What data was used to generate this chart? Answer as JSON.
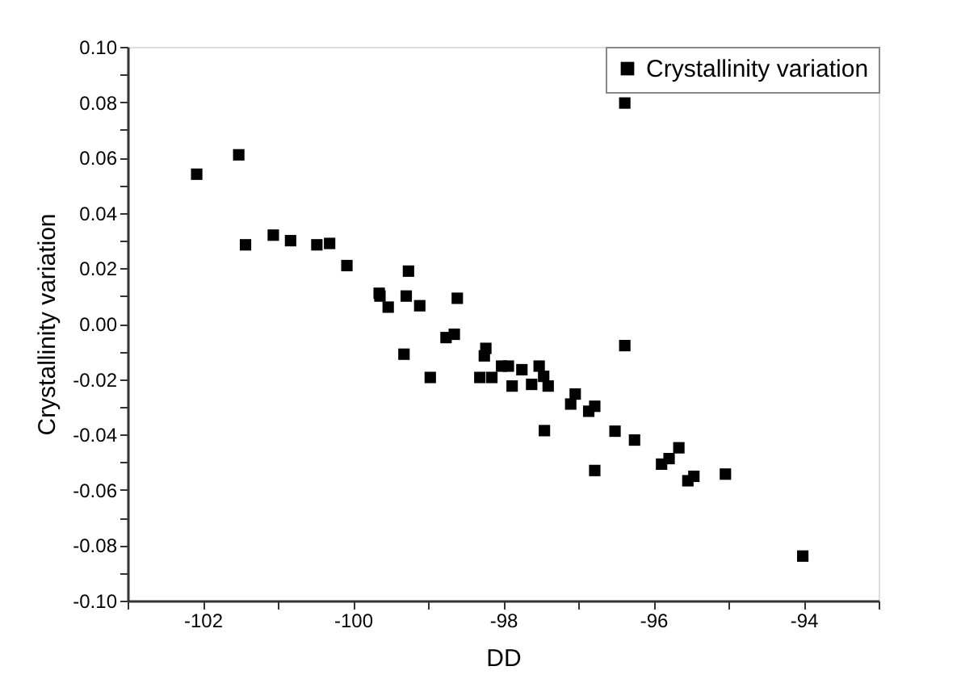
{
  "chart_data": {
    "type": "scatter",
    "xlabel": "DD",
    "ylabel": "Crystallinity variation",
    "xlim": [
      -103,
      -93
    ],
    "xticks": [
      {
        "value": -103,
        "label": null
      },
      -102,
      {
        "value": -101,
        "label": null
      },
      -100,
      {
        "value": -99,
        "label": null
      },
      -98,
      {
        "value": -97,
        "label": null
      },
      -96,
      {
        "value": -95,
        "label": null
      },
      -94,
      {
        "value": -93,
        "label": null
      }
    ],
    "ylim": [
      -0.1,
      0.1
    ],
    "yticks": [
      {
        "value": -0.1,
        "label": "-0.10"
      },
      {
        "value": -0.09,
        "label": null
      },
      {
        "value": -0.08,
        "label": "-0.08"
      },
      {
        "value": -0.07,
        "label": null
      },
      {
        "value": -0.06,
        "label": "-0.06"
      },
      {
        "value": -0.05,
        "label": null
      },
      {
        "value": -0.04,
        "label": "-0.04"
      },
      {
        "value": -0.03,
        "label": null
      },
      {
        "value": -0.02,
        "label": "-0.02"
      },
      {
        "value": -0.01,
        "label": null
      },
      {
        "value": 0,
        "label": "0.00"
      },
      {
        "value": 0.01,
        "label": null
      },
      {
        "value": 0.02,
        "label": "0.02"
      },
      {
        "value": 0.03,
        "label": null
      },
      {
        "value": 0.04,
        "label": "0.04"
      },
      {
        "value": 0.05,
        "label": null
      },
      {
        "value": 0.06,
        "label": "0.06"
      },
      {
        "value": 0.07,
        "label": null
      },
      {
        "value": 0.08,
        "label": "0.08"
      },
      {
        "value": 0.09,
        "label": null
      },
      {
        "value": 0.1,
        "label": "0.10"
      }
    ],
    "grid": false,
    "legend": "top right",
    "marker": "square",
    "series": [
      {
        "name": "Crystallinity variation",
        "color": "#000000",
        "x": [
          -102.08,
          -101.52,
          -101.43,
          -101.06,
          -100.83,
          -100.48,
          -100.31,
          -100.08,
          -99.65,
          -99.64,
          -99.53,
          -99.26,
          -99.29,
          -99.11,
          -98.61,
          -99.32,
          -98.97,
          -98.76,
          -98.65,
          -98.23,
          -98.25,
          -98.31,
          -98.15,
          -98.02,
          -97.93,
          -97.88,
          -97.75,
          -97.62,
          -97.52,
          -97.46,
          -97.4,
          -97.45,
          -97.04,
          -97.1,
          -96.86,
          -96.78,
          -96.78,
          -96.38,
          -96.38,
          -96.51,
          -96.25,
          -95.66,
          -95.79,
          -95.89,
          -95.54,
          -95.46,
          -95.04,
          -94.01
        ],
        "values": [
          0.054,
          0.061,
          0.0285,
          0.032,
          0.03,
          0.0285,
          0.029,
          0.021,
          0.011,
          0.01,
          0.006,
          0.019,
          0.01,
          0.0065,
          0.0092,
          -0.011,
          -0.0194,
          -0.005,
          -0.0038,
          -0.0089,
          -0.0116,
          -0.0194,
          -0.0194,
          -0.0153,
          -0.0153,
          -0.0225,
          -0.0166,
          -0.0219,
          -0.0153,
          -0.019,
          -0.0225,
          -0.0386,
          -0.0254,
          -0.029,
          -0.0316,
          -0.0298,
          -0.053,
          -0.0079,
          0.0797,
          -0.0388,
          -0.042,
          -0.0448,
          -0.0487,
          -0.0507,
          -0.0567,
          -0.0551,
          -0.0543,
          -0.0839
        ]
      }
    ]
  }
}
